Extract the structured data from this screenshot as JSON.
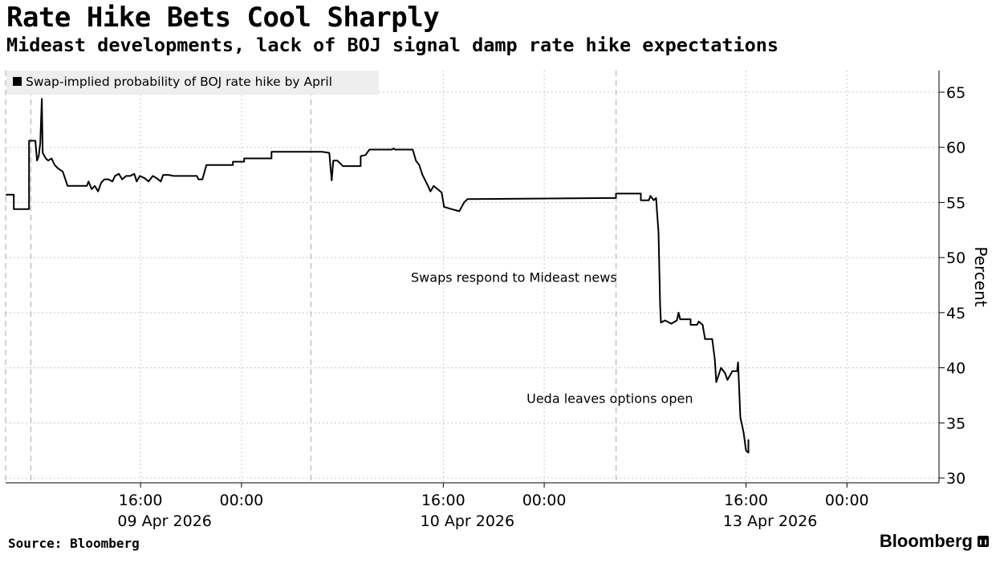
{
  "header": {
    "title": "Rate Hike Bets Cool Sharply",
    "subtitle": "Mideast developments, lack of BOJ signal damp rate hike expectations"
  },
  "footer": {
    "source": "Source: Bloomberg",
    "brand": "Bloomberg"
  },
  "chart_data": {
    "type": "line",
    "title": "Rate Hike Bets Cool Sharply",
    "xlabel": "",
    "ylabel": "Percent",
    "x_units": "trading hours from 09 Apr 2026 00:00 (weekend removed)",
    "xlim": [
      5.3,
      79.3
    ],
    "ylim": [
      30,
      65
    ],
    "y_ticks": [
      30,
      35,
      40,
      45,
      50,
      55,
      60,
      65
    ],
    "x_ticks": [
      {
        "x": 16,
        "label": "16:00",
        "date": "09 Apr 2026"
      },
      {
        "x": 24,
        "label": "00:00",
        "date": ""
      },
      {
        "x": 40,
        "label": "16:00",
        "date": "10 Apr 2026"
      },
      {
        "x": 48,
        "label": "00:00",
        "date": ""
      },
      {
        "x": 64,
        "label": "16:00",
        "date": "13 Apr 2026"
      },
      {
        "x": 72,
        "label": "00:00",
        "date": ""
      }
    ],
    "session_markers": [
      5.3,
      7.3,
      29.5,
      53.7
    ],
    "grid": true,
    "legend": {
      "position": "top-left",
      "entries": [
        "Swap-implied probability of BOJ rate hike by April"
      ]
    },
    "annotations": [
      {
        "text": "Swaps respond to Mideast news",
        "x": 45.6,
        "y": 47.8
      },
      {
        "text": "Ueda leaves options open",
        "x": 53.2,
        "y": 36.8
      }
    ],
    "series": [
      {
        "name": "Swap-implied probability of BOJ rate hike by April",
        "color": "#000000",
        "points": [
          [
            5.31,
            55.7
          ],
          [
            5.95,
            55.7
          ],
          [
            5.95,
            54.4
          ],
          [
            7.16,
            54.4
          ],
          [
            7.16,
            60.6
          ],
          [
            7.66,
            60.6
          ],
          [
            7.79,
            58.8
          ],
          [
            7.92,
            59.2
          ],
          [
            8.05,
            60.4
          ],
          [
            8.17,
            64.4
          ],
          [
            8.24,
            59.5
          ],
          [
            8.49,
            59.0
          ],
          [
            8.68,
            58.8
          ],
          [
            8.94,
            59.0
          ],
          [
            9.19,
            58.4
          ],
          [
            9.44,
            58.1
          ],
          [
            9.83,
            57.8
          ],
          [
            10.21,
            56.5
          ],
          [
            11.74,
            56.5
          ],
          [
            11.87,
            56.9
          ],
          [
            12.12,
            56.2
          ],
          [
            12.37,
            56.5
          ],
          [
            12.63,
            56.0
          ],
          [
            12.88,
            56.8
          ],
          [
            13.14,
            57.1
          ],
          [
            13.46,
            57.1
          ],
          [
            13.77,
            56.9
          ],
          [
            13.97,
            57.4
          ],
          [
            14.28,
            57.6
          ],
          [
            14.54,
            57.1
          ],
          [
            14.86,
            57.4
          ],
          [
            15.18,
            57.4
          ],
          [
            15.5,
            57.6
          ],
          [
            15.69,
            56.9
          ],
          [
            15.94,
            57.4
          ],
          [
            16.32,
            57.2
          ],
          [
            16.64,
            56.9
          ],
          [
            16.96,
            57.4
          ],
          [
            17.28,
            57.2
          ],
          [
            17.6,
            56.9
          ],
          [
            17.79,
            57.5
          ],
          [
            18.23,
            57.5
          ],
          [
            18.61,
            57.4
          ],
          [
            20.46,
            57.4
          ],
          [
            20.59,
            57.1
          ],
          [
            20.9,
            57.1
          ],
          [
            21.22,
            58.4
          ],
          [
            23.32,
            58.4
          ],
          [
            23.32,
            58.7
          ],
          [
            24.21,
            58.7
          ],
          [
            24.21,
            59.0
          ],
          [
            26.38,
            59.0
          ],
          [
            26.38,
            59.6
          ],
          [
            30.39,
            59.6
          ],
          [
            30.96,
            59.5
          ],
          [
            31.15,
            57.0
          ],
          [
            31.28,
            58.8
          ],
          [
            31.6,
            58.8
          ],
          [
            32.04,
            58.3
          ],
          [
            33.45,
            58.3
          ],
          [
            33.45,
            59.2
          ],
          [
            33.83,
            59.3
          ],
          [
            34.14,
            59.8
          ],
          [
            35.93,
            59.8
          ],
          [
            36.05,
            59.9
          ],
          [
            36.18,
            59.8
          ],
          [
            37.58,
            59.8
          ],
          [
            37.83,
            58.8
          ],
          [
            38.09,
            58.4
          ],
          [
            38.35,
            57.5
          ],
          [
            38.79,
            56.5
          ],
          [
            38.98,
            56.0
          ],
          [
            39.24,
            56.5
          ],
          [
            39.55,
            56.2
          ],
          [
            39.87,
            55.9
          ],
          [
            40.06,
            54.6
          ],
          [
            40.64,
            54.4
          ],
          [
            40.95,
            54.3
          ],
          [
            41.27,
            54.2
          ],
          [
            41.65,
            55.0
          ],
          [
            41.91,
            55.3
          ],
          [
            53.69,
            55.4
          ],
          [
            53.69,
            55.8
          ],
          [
            55.66,
            55.8
          ],
          [
            55.66,
            55.2
          ],
          [
            56.3,
            55.2
          ],
          [
            56.42,
            55.6
          ],
          [
            56.68,
            55.2
          ],
          [
            56.87,
            55.4
          ],
          [
            56.93,
            54.4
          ],
          [
            57.06,
            52.3
          ],
          [
            57.19,
            45.7
          ],
          [
            57.25,
            44.1
          ],
          [
            57.57,
            44.3
          ],
          [
            58.08,
            44.0
          ],
          [
            58.52,
            44.3
          ],
          [
            58.65,
            45.0
          ],
          [
            58.78,
            44.4
          ],
          [
            59.61,
            44.4
          ],
          [
            59.61,
            43.9
          ],
          [
            60.12,
            43.9
          ],
          [
            60.25,
            44.2
          ],
          [
            60.56,
            43.9
          ],
          [
            60.75,
            42.6
          ],
          [
            61.32,
            42.6
          ],
          [
            61.52,
            40.8
          ],
          [
            61.64,
            38.7
          ],
          [
            62.02,
            40.0
          ],
          [
            62.34,
            39.5
          ],
          [
            62.53,
            38.9
          ],
          [
            62.92,
            39.7
          ],
          [
            63.3,
            39.7
          ],
          [
            63.37,
            40.5
          ],
          [
            63.55,
            35.5
          ],
          [
            63.81,
            34.1
          ],
          [
            64.0,
            32.5
          ],
          [
            64.19,
            32.3
          ],
          [
            64.19,
            33.5
          ]
        ]
      }
    ]
  }
}
